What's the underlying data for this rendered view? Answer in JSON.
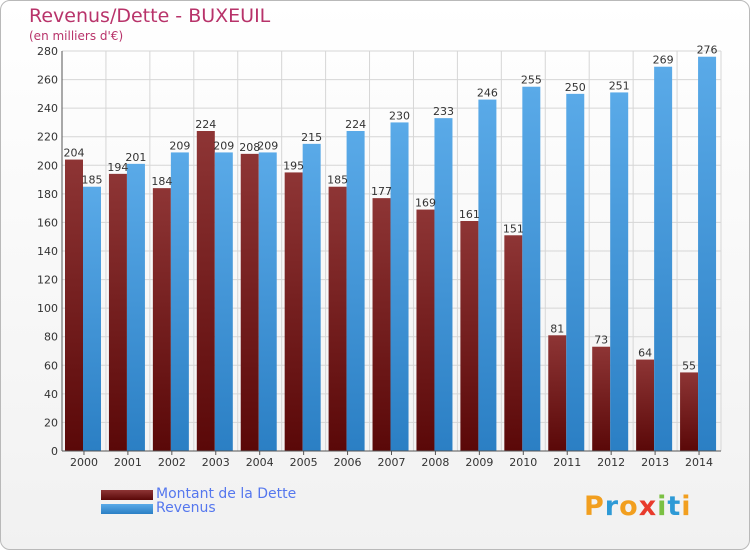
{
  "title": "Revenus/Dette - BUXEUIL",
  "subtitle": "(en milliers d'€)",
  "colors": {
    "debt": "#8b1e1e",
    "revenue": "#3498db",
    "title": "#b8336a",
    "legend_text": "#5577ee",
    "grid": "#d6d6d6",
    "axis_text": "#333333"
  },
  "chart_data": {
    "type": "bar",
    "categories": [
      "2000",
      "2001",
      "2002",
      "2003",
      "2004",
      "2005",
      "2006",
      "2007",
      "2008",
      "2009",
      "2010",
      "2011",
      "2012",
      "2013",
      "2014"
    ],
    "series": [
      {
        "name": "Montant de la Dette",
        "values": [
          204,
          194,
          184,
          224,
          208,
          195,
          185,
          177,
          169,
          161,
          151,
          81,
          73,
          64,
          55
        ]
      },
      {
        "name": "Revenus",
        "values": [
          185,
          201,
          209,
          209,
          209,
          215,
          224,
          230,
          233,
          246,
          255,
          250,
          251,
          269,
          276
        ]
      }
    ],
    "ylim": [
      0,
      280
    ],
    "yticks": [
      0,
      20,
      40,
      60,
      80,
      100,
      120,
      140,
      160,
      180,
      200,
      220,
      240,
      260,
      280
    ],
    "grid": true,
    "legend_position": "bottom-left"
  },
  "legend": {
    "debt_label": "Montant de la Dette",
    "revenue_label": "Revenus"
  },
  "logo": {
    "letters": [
      "P",
      "r",
      "o",
      "x",
      "i",
      "t",
      "i"
    ],
    "colors": [
      "#f29f1f",
      "#2e9ad6",
      "#f29f1f",
      "#e83b2c",
      "#7bc043",
      "#2e9ad6",
      "#f29f1f"
    ]
  }
}
